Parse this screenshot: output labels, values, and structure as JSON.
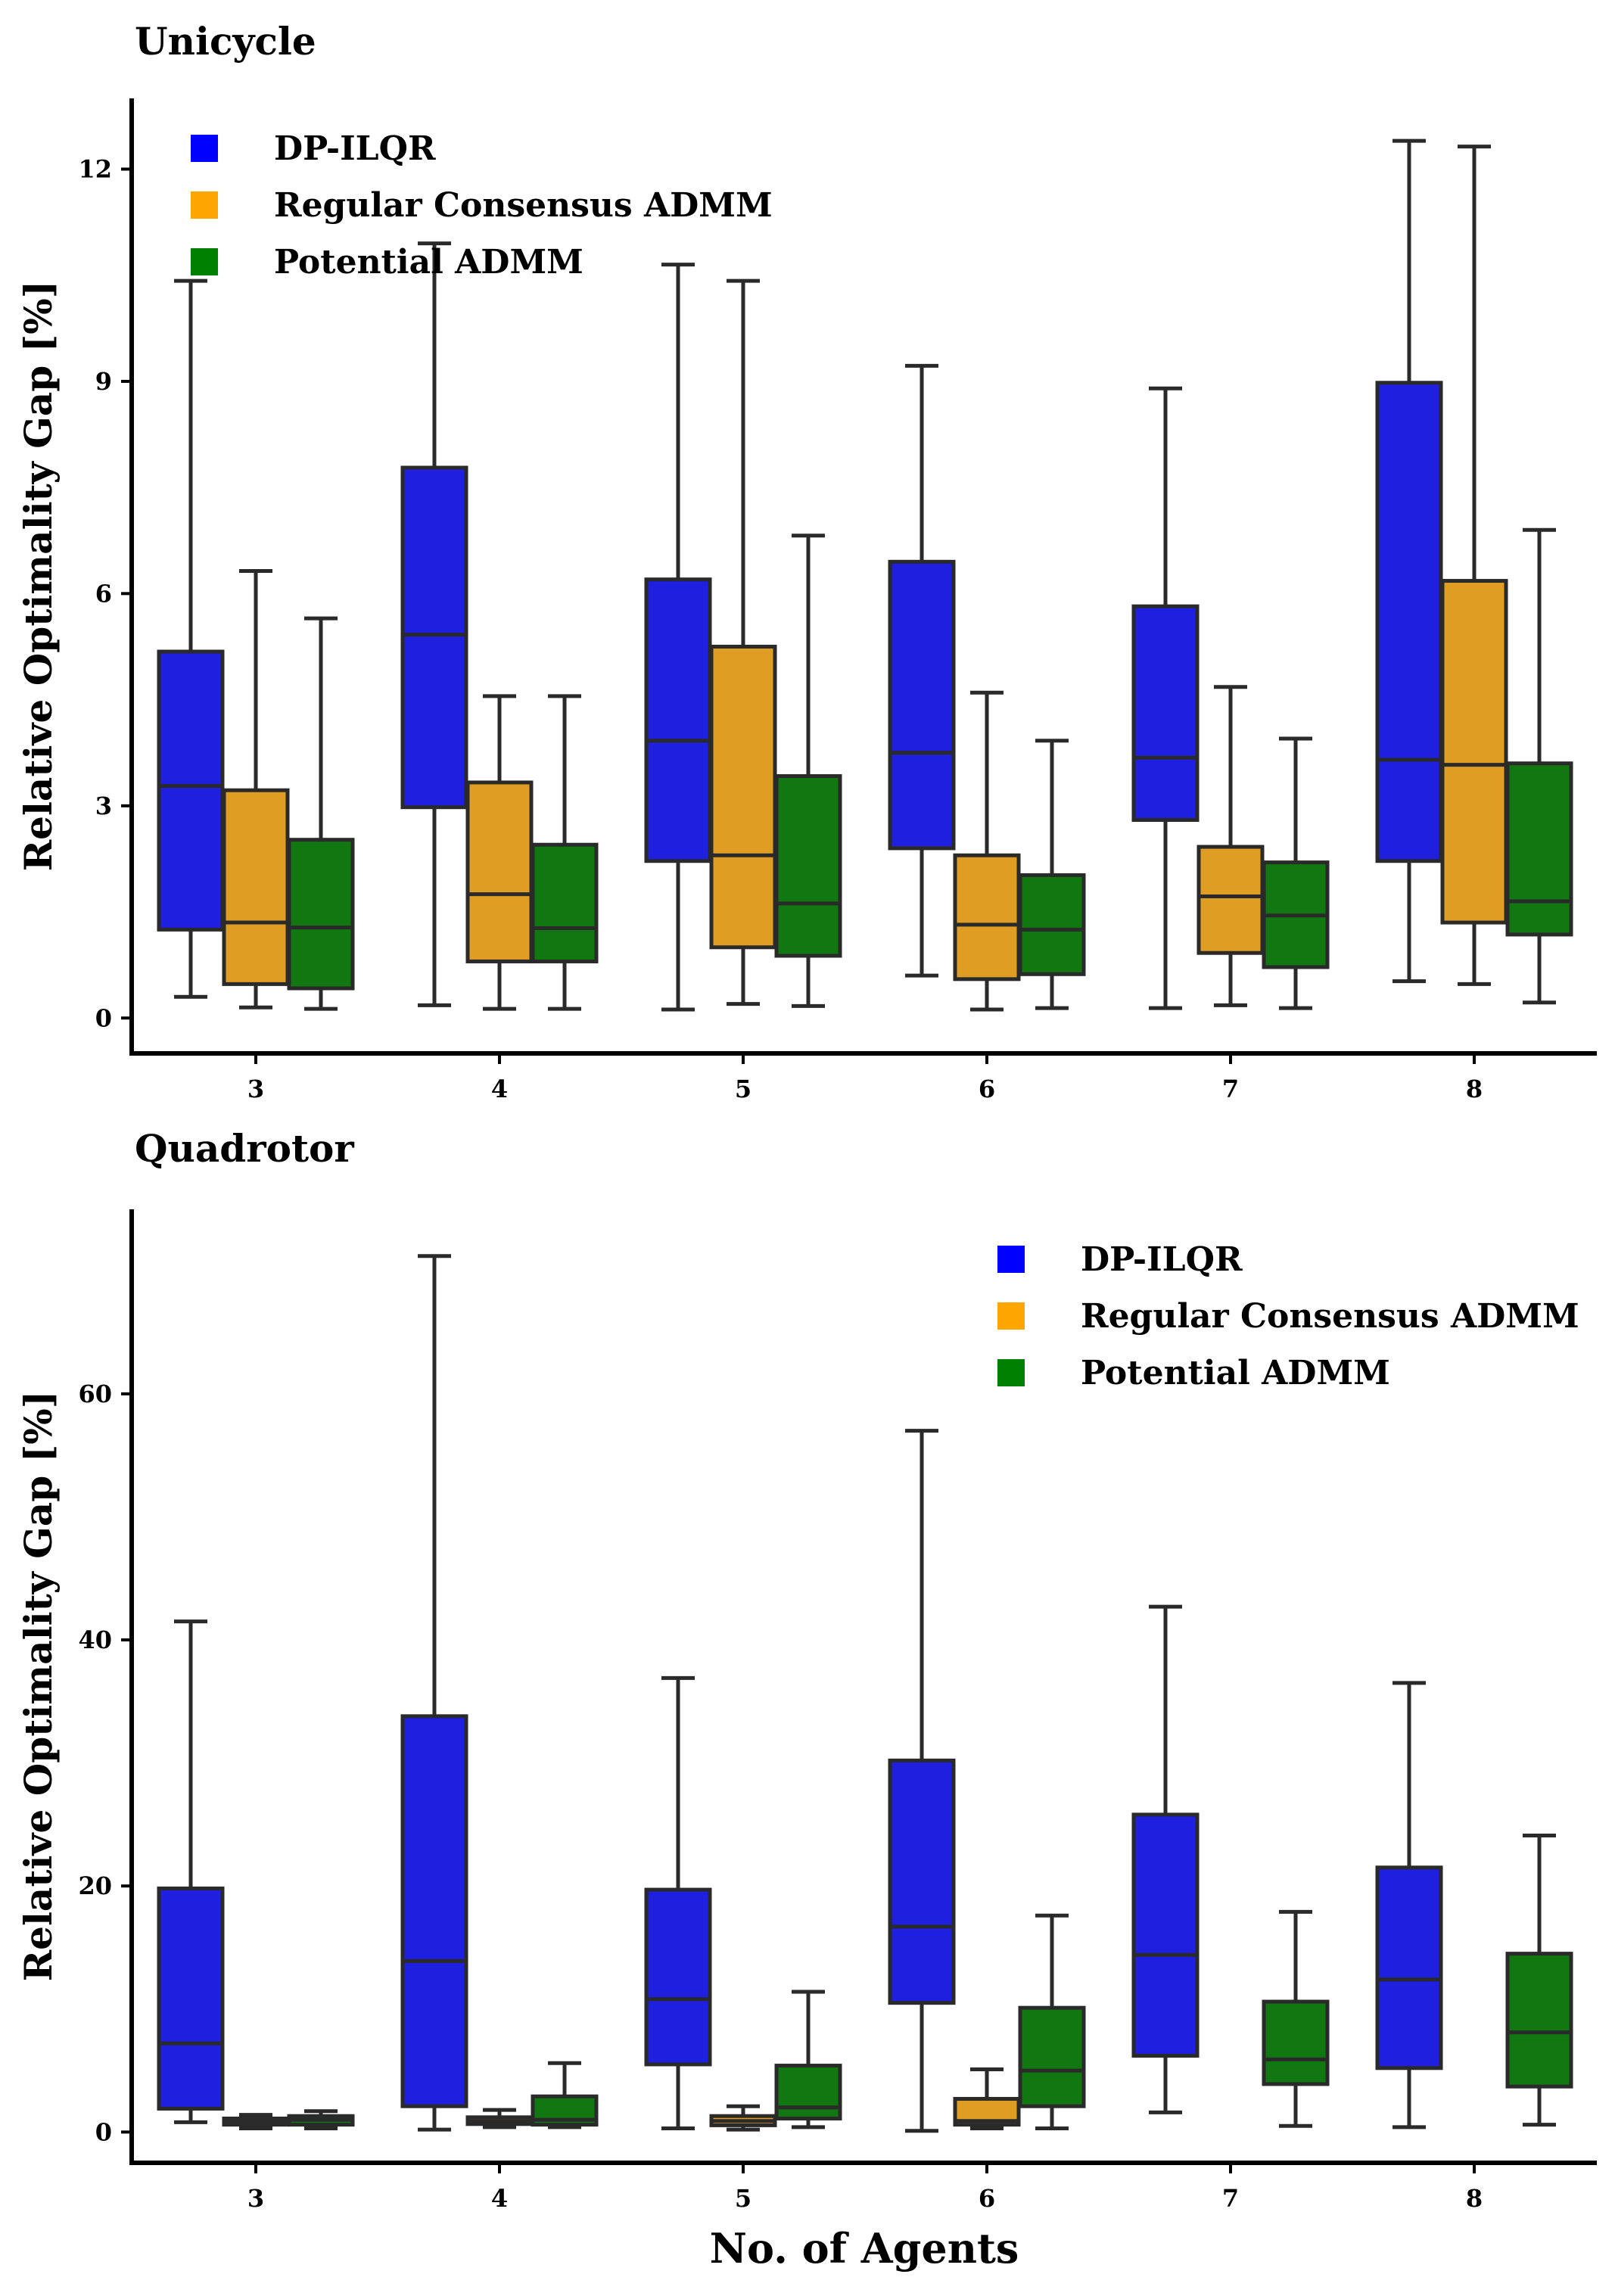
{
  "colors": {
    "DP-ILQR": "#1f1fe0",
    "Regular Consensus ADMM": "#e09d24",
    "Potential ADMM": "#117711",
    "legend_DP-ILQR": "#0000ff",
    "legend_Regular Consensus ADMM": "#ffa500",
    "legend_Potential ADMM": "#008000"
  },
  "chart_data": [
    {
      "type": "box",
      "title": "Unicycle",
      "ylabel": "Relative Optimality Gap [%]",
      "xlabel": "",
      "categories": [
        "3",
        "4",
        "5",
        "6",
        "7",
        "8"
      ],
      "yticks": [
        "0",
        "3",
        "6",
        "9",
        "12"
      ],
      "ylim": [
        -0.5,
        13
      ],
      "legend": [
        "DP-ILQR",
        "Regular Consensus ADMM",
        "Potential ADMM"
      ],
      "legend_position": "top-left",
      "series": [
        {
          "name": "DP-ILQR",
          "boxes": [
            {
              "min": 0.3,
              "q1": 1.25,
              "median": 3.28,
              "q3": 5.18,
              "max": 10.42
            },
            {
              "min": 0.18,
              "q1": 2.98,
              "median": 5.42,
              "q3": 7.78,
              "max": 10.95
            },
            {
              "min": 0.12,
              "q1": 2.22,
              "median": 3.92,
              "q3": 6.2,
              "max": 10.65
            },
            {
              "min": 0.6,
              "q1": 2.4,
              "median": 3.75,
              "q3": 6.45,
              "max": 9.22
            },
            {
              "min": 0.14,
              "q1": 2.8,
              "median": 3.68,
              "q3": 5.82,
              "max": 8.9
            },
            {
              "min": 0.52,
              "q1": 2.22,
              "median": 3.65,
              "q3": 8.98,
              "max": 12.4
            }
          ]
        },
        {
          "name": "Regular Consensus ADMM",
          "boxes": [
            {
              "min": 0.15,
              "q1": 0.48,
              "median": 1.35,
              "q3": 3.22,
              "max": 6.32
            },
            {
              "min": 0.13,
              "q1": 0.8,
              "median": 1.75,
              "q3": 3.33,
              "max": 4.55
            },
            {
              "min": 0.2,
              "q1": 1.0,
              "median": 2.3,
              "q3": 5.25,
              "max": 10.42
            },
            {
              "min": 0.12,
              "q1": 0.55,
              "median": 1.32,
              "q3": 2.3,
              "max": 4.6
            },
            {
              "min": 0.18,
              "q1": 0.92,
              "median": 1.72,
              "q3": 2.42,
              "max": 4.68
            },
            {
              "min": 0.48,
              "q1": 1.35,
              "median": 3.58,
              "q3": 6.18,
              "max": 12.32
            }
          ]
        },
        {
          "name": "Potential ADMM",
          "boxes": [
            {
              "min": 0.13,
              "q1": 0.42,
              "median": 1.28,
              "q3": 2.52,
              "max": 5.65
            },
            {
              "min": 0.13,
              "q1": 0.8,
              "median": 1.27,
              "q3": 2.45,
              "max": 4.55
            },
            {
              "min": 0.17,
              "q1": 0.88,
              "median": 1.62,
              "q3": 3.42,
              "max": 6.82
            },
            {
              "min": 0.14,
              "q1": 0.62,
              "median": 1.25,
              "q3": 2.02,
              "max": 3.92
            },
            {
              "min": 0.14,
              "q1": 0.72,
              "median": 1.45,
              "q3": 2.2,
              "max": 3.95
            },
            {
              "min": 0.22,
              "q1": 1.18,
              "median": 1.65,
              "q3": 3.6,
              "max": 6.9
            }
          ]
        }
      ]
    },
    {
      "type": "box",
      "title": "Quadrotor",
      "ylabel": "Relative Optimality Gap [%]",
      "xlabel": "No. of Agents",
      "categories": [
        "3",
        "4",
        "5",
        "6",
        "7",
        "8"
      ],
      "yticks": [
        "0",
        "20",
        "40",
        "60"
      ],
      "ylim": [
        -2.5,
        75
      ],
      "legend": [
        "DP-ILQR",
        "Regular Consensus ADMM",
        "Potential ADMM"
      ],
      "legend_position": "top-right",
      "series": [
        {
          "name": "DP-ILQR",
          "boxes": [
            {
              "min": 0.8,
              "q1": 1.9,
              "median": 7.2,
              "q3": 19.8,
              "max": 41.5
            },
            {
              "min": 0.2,
              "q1": 2.1,
              "median": 13.9,
              "q3": 33.8,
              "max": 71.2
            },
            {
              "min": 0.3,
              "q1": 5.5,
              "median": 10.8,
              "q3": 19.7,
              "max": 36.9
            },
            {
              "min": 0.1,
              "q1": 10.5,
              "median": 16.7,
              "q3": 30.2,
              "max": 57.0
            },
            {
              "min": 1.6,
              "q1": 6.2,
              "median": 14.4,
              "q3": 25.8,
              "max": 42.7
            },
            {
              "min": 0.4,
              "q1": 5.2,
              "median": 12.4,
              "q3": 21.5,
              "max": 36.5
            }
          ]
        },
        {
          "name": "Regular Consensus ADMM",
          "boxes": [
            {
              "min": 0.3,
              "q1": 0.6,
              "median": 0.85,
              "q3": 1.1,
              "max": 1.4
            },
            {
              "min": 0.4,
              "q1": 0.65,
              "median": 0.9,
              "q3": 1.2,
              "max": 1.8
            },
            {
              "min": 0.2,
              "q1": 0.55,
              "median": 0.9,
              "q3": 1.3,
              "max": 2.1
            },
            {
              "min": 0.3,
              "q1": 0.6,
              "median": 0.9,
              "q3": 2.7,
              "max": 5.1
            },
            null,
            null
          ]
        },
        {
          "name": "Potential ADMM",
          "boxes": [
            {
              "min": 0.3,
              "q1": 0.6,
              "median": 1.0,
              "q3": 1.3,
              "max": 1.7
            },
            {
              "min": 0.4,
              "q1": 0.6,
              "median": 1.0,
              "q3": 2.9,
              "max": 5.6
            },
            {
              "min": 0.4,
              "q1": 1.1,
              "median": 2.0,
              "q3": 5.4,
              "max": 11.4
            },
            {
              "min": 0.3,
              "q1": 2.1,
              "median": 5.0,
              "q3": 10.1,
              "max": 17.6
            },
            {
              "min": 0.5,
              "q1": 3.9,
              "median": 5.9,
              "q3": 10.6,
              "max": 17.9
            },
            {
              "min": 0.6,
              "q1": 3.7,
              "median": 8.1,
              "q3": 14.5,
              "max": 24.1
            }
          ]
        }
      ]
    }
  ]
}
